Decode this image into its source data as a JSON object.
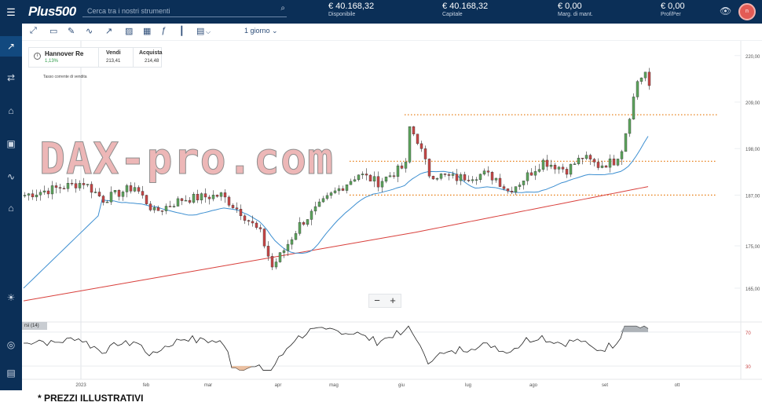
{
  "topbar": {
    "logo": "Plus500",
    "search_placeholder": "Cerca tra i nostri strumenti",
    "stats": [
      {
        "value": "€ 40.168,32",
        "label": "Disponibile"
      },
      {
        "value": "€ 40.168,32",
        "label": "Capitale"
      },
      {
        "value": "€ 0,00",
        "label": "Marg. di mant."
      },
      {
        "value": "€ 0,00",
        "label": "Prof/Per"
      }
    ],
    "avatar_initial": "n"
  },
  "toolbar": {
    "timeframe": "1 giorno"
  },
  "instrument": {
    "name": "Hannover Re",
    "change": "1,13%",
    "sell_label": "Vendi",
    "sell_value": "213,41",
    "buy_label": "Acquista",
    "buy_value": "214,48",
    "sell_rate_label": "Tasso corrente di vendita"
  },
  "watermark": "DAX-pro.com",
  "rsi_label": "rsi (14)",
  "disclaimer": "* PREZZI ILLUSTRATIVI",
  "chart_data": {
    "type": "candlestick",
    "y_ticks": [
      "220,00",
      "209,00",
      "198,00",
      "187,00",
      "175,00",
      "165,00"
    ],
    "rsi_ticks": [
      "70",
      "30"
    ],
    "x_ticks": [
      "2023",
      "feb",
      "mar",
      "apr",
      "mag",
      "giu",
      "lug",
      "ago",
      "set",
      "ott"
    ],
    "price_ylim": [
      157,
      222
    ],
    "rsi_ylim": [
      20,
      80
    ],
    "horizontal_levels": [
      206,
      195,
      187
    ],
    "ma_short_color": "#3d8fd1",
    "ma_long_color": "#d9413d",
    "level_color": "#e8801a",
    "up_color": "#5da55d",
    "down_color": "#c94747"
  }
}
